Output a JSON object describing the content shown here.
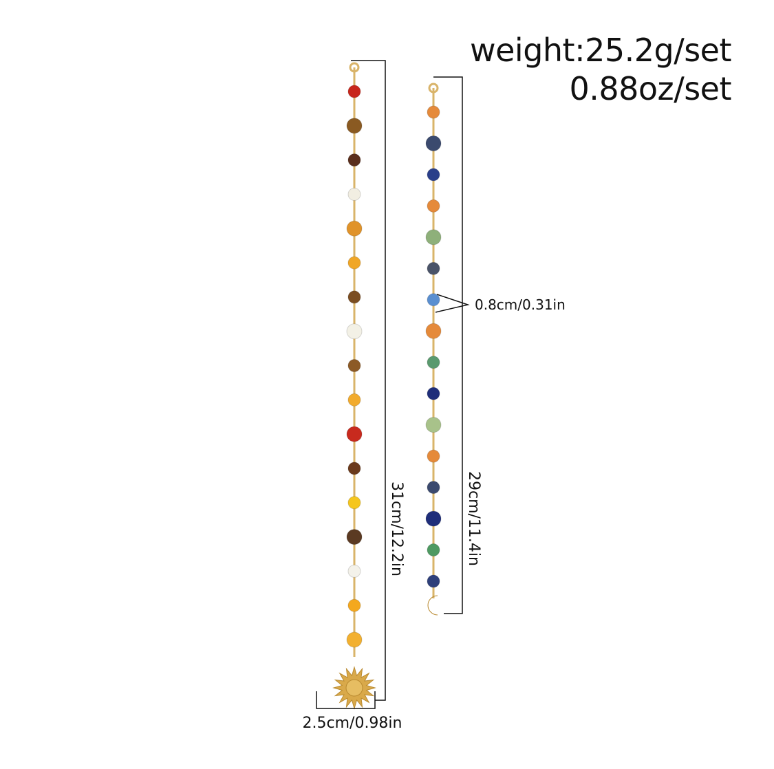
{
  "specs": {
    "weight_g": "weight:25.2g/set",
    "weight_oz": "0.88oz/set"
  },
  "dimensions": {
    "left_length": "31cm/12.2in",
    "right_length": "29cm/11.4in",
    "pendant_width": "2.5cm/0.98in",
    "bead_size": "0.8cm/0.31in"
  },
  "colors": {
    "chain": "#d9b46a",
    "line": "#111111"
  },
  "left_chain": {
    "pendant": "sun-charm",
    "beads": [
      "#c8261b",
      "#8a5a22",
      "#5a2e1c",
      "#f2eee2",
      "#e0932a",
      "#f0a626",
      "#7b4e22",
      "#f3f1e6",
      "#8c5a26",
      "#f2ab2c",
      "#c82a1e",
      "#6b3a1c",
      "#f5c61e",
      "#5b3a22",
      "#f4f2ea",
      "#f4a81e",
      "#f2b030"
    ]
  },
  "right_chain": {
    "pendant": "moon-charm",
    "beads": [
      "#e58a3a",
      "#3b4a6e",
      "#2a3f8a",
      "#e58a3a",
      "#8eb07a",
      "#4a5368",
      "#5a8fd0",
      "#e58a3a",
      "#5a9a6e",
      "#1f2e7a",
      "#a8c28a",
      "#e58a3a",
      "#3b4a6e",
      "#1f2e7a",
      "#4e9a62",
      "#2e3f7a"
    ]
  }
}
